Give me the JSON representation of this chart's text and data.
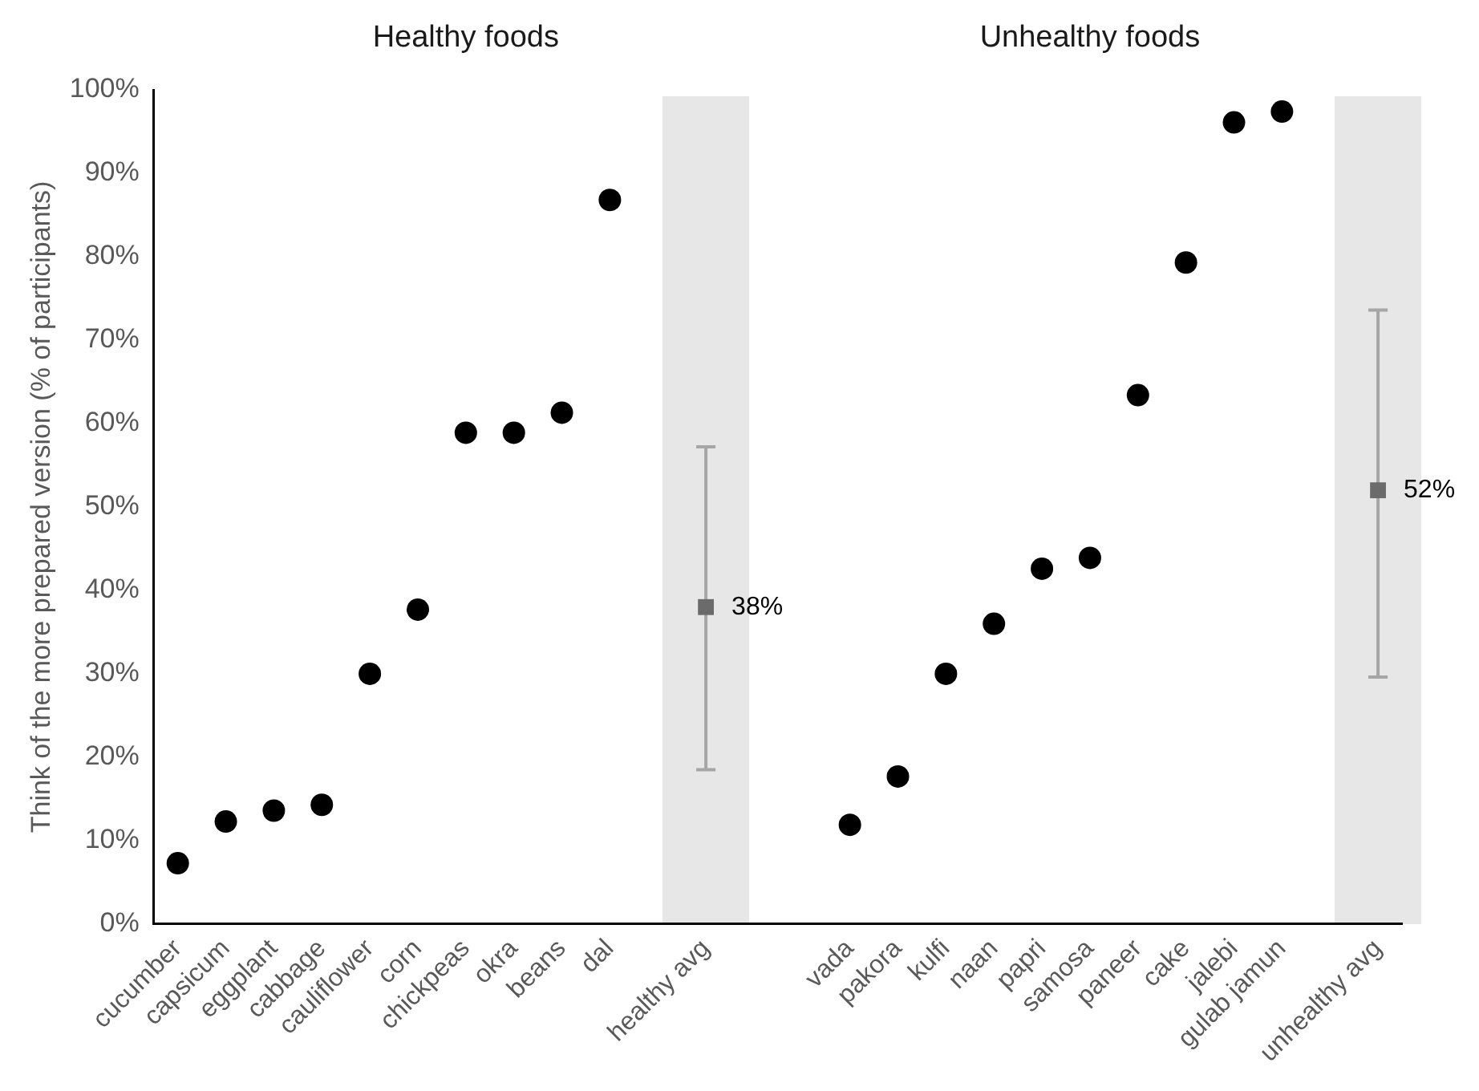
{
  "chart_data": {
    "type": "scatter",
    "categories": [
      "cucumber",
      "capsicum",
      "eggplant",
      "cabbage",
      "cauliflower",
      "corn",
      "chickpeas",
      "okra",
      "beans",
      "dal",
      null,
      "healthy avg",
      null,
      null,
      "vada",
      "pakora",
      "kulfi",
      "naan",
      "papri",
      "samosa",
      "paneer",
      "cake",
      "jalebi",
      "gulab jamun",
      null,
      "unhealthy avg"
    ],
    "series": [
      {
        "color": "#000000",
        "marker": "circle",
        "values": [
          7.3,
          12.3,
          13.6,
          14.3,
          30.0,
          37.7,
          58.9,
          58.9,
          61.3,
          86.8,
          null,
          null,
          null,
          null,
          11.9,
          17.7,
          30.0,
          36.0,
          42.6,
          43.9,
          63.4,
          79.3,
          96.1,
          97.4,
          null,
          null
        ]
      },
      {
        "color": "#6b6b6b",
        "marker": "square",
        "values": [
          null,
          null,
          null,
          null,
          null,
          null,
          null,
          null,
          null,
          null,
          null,
          38,
          null,
          null,
          null,
          null,
          null,
          null,
          null,
          null,
          null,
          null,
          null,
          null,
          null,
          52
        ],
        "errors": [
          null,
          null,
          null,
          null,
          null,
          null,
          null,
          null,
          null,
          null,
          null,
          [
            18.5,
            57.2
          ],
          null,
          null,
          null,
          null,
          null,
          null,
          null,
          null,
          null,
          null,
          null,
          null,
          null,
          [
            29.6,
            73.6
          ]
        ],
        "value_labels": [
          null,
          null,
          null,
          null,
          null,
          null,
          null,
          null,
          null,
          null,
          null,
          "38%",
          null,
          null,
          null,
          null,
          null,
          null,
          null,
          null,
          null,
          null,
          null,
          null,
          null,
          "52%"
        ]
      }
    ],
    "ylabel": "Think of the more prepared version (% of participants)",
    "ylim": [
      0,
      100
    ],
    "yticks": [
      {
        "value": 0,
        "label": "0%"
      },
      {
        "value": 10,
        "label": "10%"
      },
      {
        "value": 20,
        "label": "20%"
      },
      {
        "value": 30,
        "label": "30%"
      },
      {
        "value": 40,
        "label": "40%"
      },
      {
        "value": 50,
        "label": "50%"
      },
      {
        "value": 60,
        "label": "60%"
      },
      {
        "value": 70,
        "label": "70%"
      },
      {
        "value": 80,
        "label": "80%"
      },
      {
        "value": 90,
        "label": "90%"
      },
      {
        "value": 100,
        "label": "100%"
      }
    ],
    "annotations": [
      "Healthy foods",
      "Unhealthy foods"
    ],
    "grid": false,
    "legend": false
  }
}
